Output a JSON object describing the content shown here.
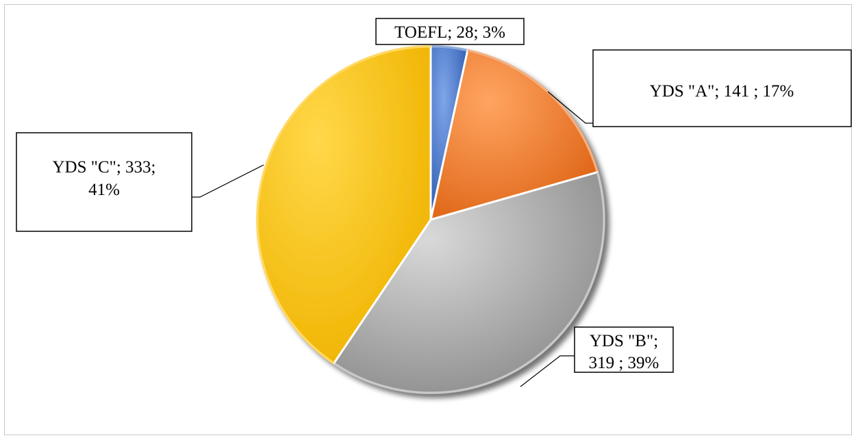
{
  "chart_data": {
    "type": "pie",
    "title": "",
    "legend": "none",
    "slices": [
      {
        "label": "TOEFL",
        "value": 28,
        "percent": 3,
        "color": "#4472c4",
        "display": "TOEFL; 28; 3%"
      },
      {
        "label": "YDS \"A\"",
        "value": 141,
        "percent": 17,
        "color": "#ed7d31",
        "display": "YDS \"A\"; 141 ; 17%"
      },
      {
        "label": "YDS \"B\"",
        "value": 319,
        "percent": 39,
        "color": "#a5a5a5",
        "display_lines": [
          "YDS \"B\";",
          "319 ; 39%"
        ]
      },
      {
        "label": "YDS \"C\"",
        "value": 333,
        "percent": 41,
        "color": "#ffc000",
        "display_lines": [
          "YDS \"C\"; 333;",
          "41%"
        ]
      }
    ]
  }
}
